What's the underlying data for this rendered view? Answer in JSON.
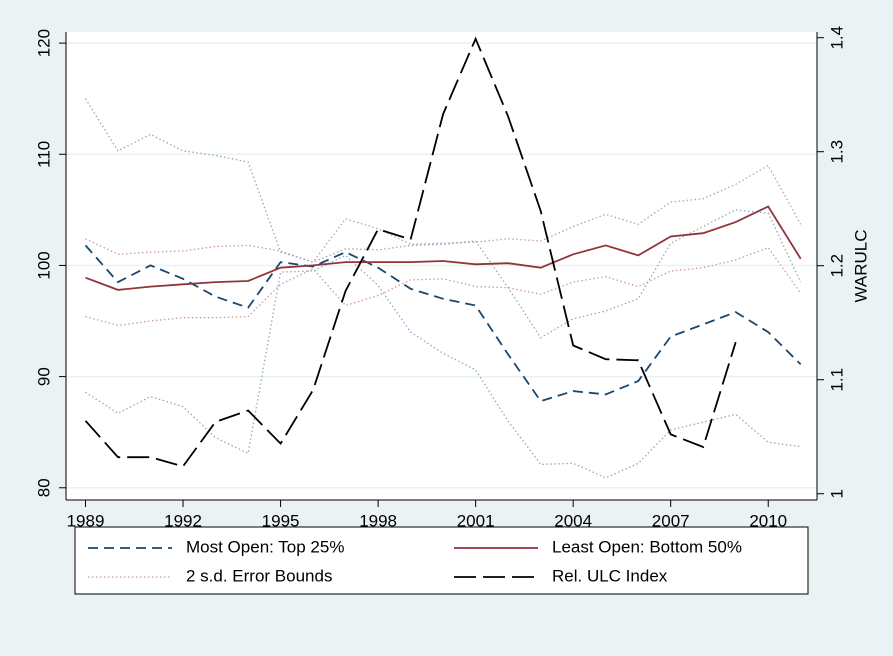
{
  "chart_data": {
    "type": "line",
    "x": [
      1989,
      1990,
      1991,
      1992,
      1993,
      1994,
      1995,
      1996,
      1997,
      1998,
      1999,
      2000,
      2001,
      2002,
      2003,
      2004,
      2005,
      2006,
      2007,
      2008,
      2009,
      2010,
      2011
    ],
    "xlim": [
      1988.4,
      2011.5
    ],
    "xticks": [
      1989,
      1992,
      1995,
      1998,
      2001,
      2004,
      2007,
      2010
    ],
    "ylim": [
      78.9,
      121
    ],
    "yticks": [
      80,
      90,
      100,
      110,
      120
    ],
    "y2lim": [
      0.9945,
      1.405
    ],
    "y2ticks": [
      1,
      1.1,
      1.2,
      1.3,
      1.4
    ],
    "y2label": "WARULC",
    "grid": true,
    "series": [
      {
        "name": "Most Open: Top 25%",
        "color": "#1a476f",
        "style": "dashed",
        "values": [
          101.8,
          98.5,
          100.0,
          98.8,
          97.2,
          96.2,
          100.3,
          99.9,
          101.2,
          99.8,
          97.9,
          97.0,
          96.4,
          92.0,
          87.8,
          88.7,
          88.4,
          89.6,
          93.6,
          94.7,
          95.8,
          94.0,
          91.1
        ]
      },
      {
        "name": "Least Open: Bottom 50%",
        "color": "#90353b",
        "style": "solid",
        "values": [
          98.9,
          97.8,
          98.1,
          98.3,
          98.5,
          98.6,
          99.8,
          100.0,
          100.3,
          100.3,
          100.3,
          100.4,
          100.1,
          100.2,
          99.8,
          101.0,
          101.8,
          100.9,
          102.6,
          102.9,
          103.9,
          105.3,
          100.6
        ]
      },
      {
        "name": "2 s.d. Error Bounds",
        "color": "#c99aa6",
        "style": "dotted",
        "values": [
          102.4,
          101.0,
          101.2,
          101.3,
          101.7,
          101.8,
          101.3,
          100.3,
          104.2,
          103.3,
          101.9,
          102.0,
          102.1,
          102.4,
          102.2,
          103.5,
          104.6,
          103.7,
          105.7,
          106.0,
          107.3,
          109.0,
          103.7
        ]
      },
      {
        "name": "Rel. ULC Index",
        "color": "#000000",
        "style": "longdash",
        "axis": "y2",
        "values": [
          1.064,
          1.032,
          1.032,
          1.024,
          1.063,
          1.073,
          1.044,
          1.091,
          1.178,
          1.232,
          1.223,
          1.333,
          1.399,
          1.331,
          1.248,
          1.13,
          1.118,
          1.117,
          1.052,
          1.041,
          1.133,
          null,
          null
        ]
      },
      {
        "color": "#c99aa6",
        "style": "dotted",
        "values": [
          95.4,
          94.6,
          95.0,
          95.3,
          95.3,
          95.4,
          98.3,
          99.7,
          96.4,
          97.3,
          98.7,
          98.8,
          98.1,
          98.0,
          97.4,
          98.5,
          99.0,
          98.1,
          99.5,
          99.8,
          100.5,
          101.6,
          97.5
        ]
      },
      {
        "color": "#8fa9c4",
        "style": "dotted",
        "values": [
          115.0,
          110.3,
          111.8,
          110.3,
          109.9,
          109.3,
          101.2,
          100.3,
          101.5,
          101.4,
          101.8,
          101.9,
          102.2,
          98.0,
          93.5,
          95.2,
          95.9,
          97.0,
          102.0,
          103.5,
          105.0,
          104.7,
          98.5
        ]
      },
      {
        "color": "#8fa9c4",
        "style": "dotted",
        "values": [
          88.6,
          86.7,
          88.2,
          87.3,
          84.5,
          83.1,
          99.4,
          99.5,
          100.9,
          98.2,
          94.0,
          92.1,
          90.6,
          86.0,
          82.1,
          82.2,
          80.9,
          82.2,
          85.2,
          85.9,
          86.6,
          84.1,
          83.7
        ]
      }
    ]
  }
}
